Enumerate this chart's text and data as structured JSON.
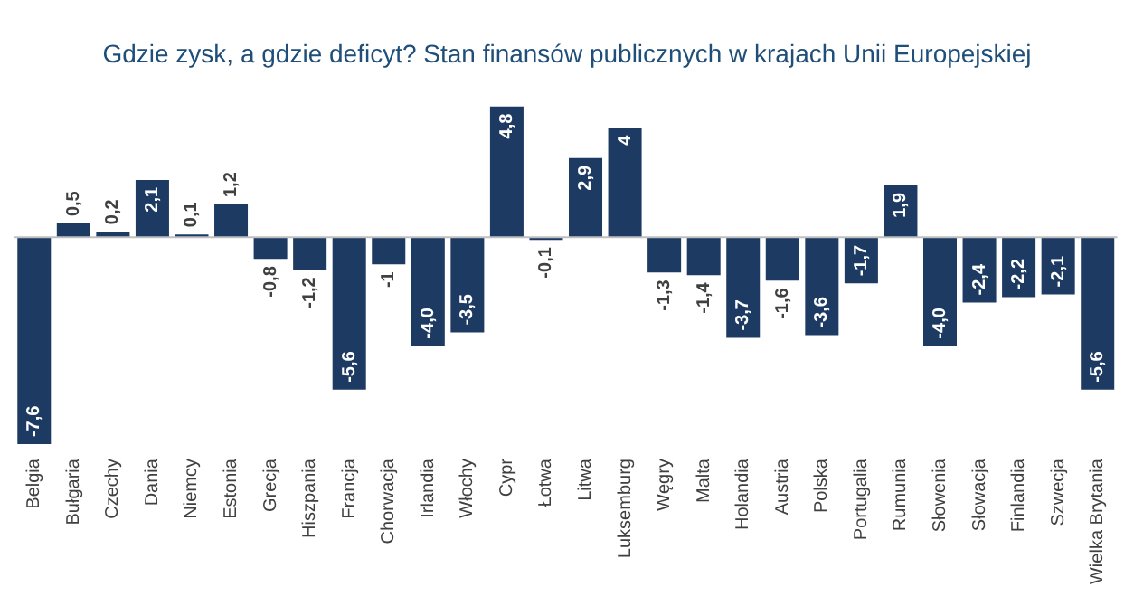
{
  "chart_data": {
    "type": "bar",
    "title": "Gdzie zysk, a gdzie deficyt? Stan finansów publicznych w krajach Unii Europejskiej",
    "categories": [
      "Belgia",
      "Bułgaria",
      "Czechy",
      "Dania",
      "Niemcy",
      "Estonia",
      "Grecja",
      "Hiszpania",
      "Francja",
      "Chorwacja",
      "Irlandia",
      "Włochy",
      "Cypr",
      "Łotwa",
      "Litwa",
      "Luksemburg",
      "Węgry",
      "Malta",
      "Holandia",
      "Austria",
      "Polska",
      "Portugalia",
      "Rumunia",
      "Słowenia",
      "Słowacja",
      "Finlandia",
      "Szwecja",
      "Wielka Brytania"
    ],
    "values": [
      -7.6,
      0.5,
      0.2,
      2.1,
      0.1,
      1.2,
      -0.8,
      -1.2,
      -5.6,
      -1,
      -4.0,
      -3.5,
      4.8,
      -0.1,
      2.9,
      4,
      -1.3,
      -1.4,
      -3.7,
      -1.6,
      -3.6,
      -1.7,
      1.9,
      -4.0,
      -2.4,
      -2.2,
      -2.1,
      -5.6
    ],
    "value_labels": [
      "-7,6",
      "0,5",
      "0,2",
      "2,1",
      "0,1",
      "1,2",
      "-0,8",
      "-1,2",
      "-5,6",
      "-1",
      "-4,0",
      "-3,5",
      "4,8",
      "-0,1",
      "2,9",
      "4",
      "-1,3",
      "-1,4",
      "-3,7",
      "-1,6",
      "-3,6",
      "-1,7",
      "1,9",
      "-4,0",
      "-2,4",
      "-2,2",
      "-2,1",
      "-5,6"
    ],
    "color": "#1d3a63",
    "grid": false,
    "legend": false
  }
}
